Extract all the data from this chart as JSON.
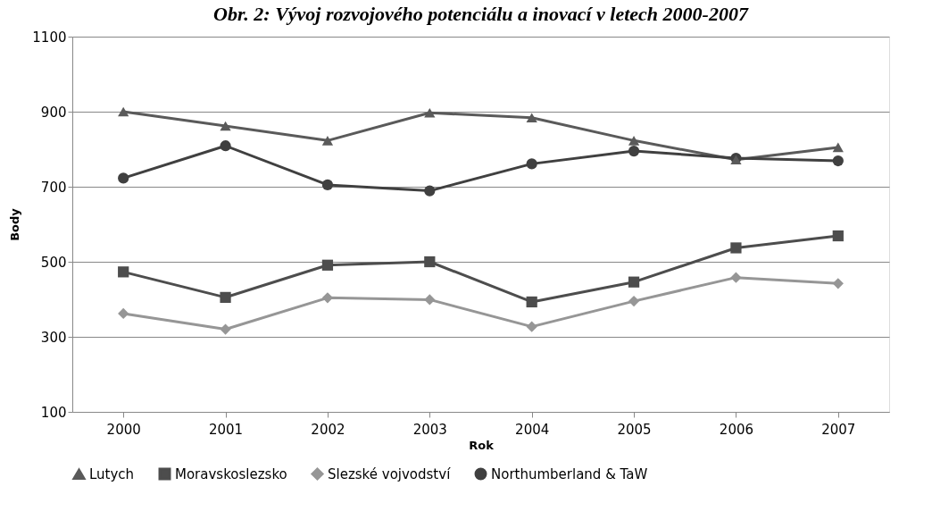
{
  "chart_data": {
    "type": "line",
    "title": "Obr. 2: Vývoj rozvojového potenciálu a inovací v letech 2000-2007",
    "xlabel": "Rok",
    "ylabel": "Body",
    "categories": [
      "2000",
      "2001",
      "2002",
      "2003",
      "2004",
      "2005",
      "2006",
      "2007"
    ],
    "series": [
      {
        "name": "Lutych",
        "color": "#5a5a5a",
        "marker": "triangle",
        "values": [
          900,
          862,
          823,
          897,
          884,
          823,
          772,
          805
        ]
      },
      {
        "name": "Moravskoslezsko",
        "color": "#4d4d4d",
        "marker": "square",
        "values": [
          473,
          405,
          491,
          500,
          393,
          446,
          537,
          569
        ]
      },
      {
        "name": "Slezské vojvodství",
        "color": "#969696",
        "marker": "diamond",
        "values": [
          362,
          320,
          404,
          399,
          327,
          395,
          458,
          442
        ]
      },
      {
        "name": "Northumberland & TaW",
        "color": "#404040",
        "marker": "circle",
        "values": [
          723,
          809,
          705,
          689,
          761,
          795,
          776,
          769
        ]
      }
    ],
    "ylim": [
      100,
      1100
    ],
    "yticks": [
      100,
      300,
      500,
      700,
      900,
      1100
    ],
    "grid": "y",
    "legend": "bottom",
    "line_style": "solid"
  }
}
